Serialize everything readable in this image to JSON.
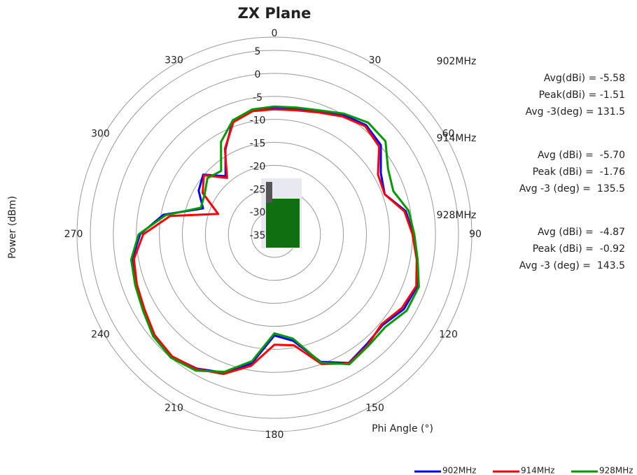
{
  "chart_data": {
    "type": "radar",
    "title": "ZX Plane",
    "y_label": "Power (dBm)",
    "x_label": "Phi Angle (°)",
    "categories": [
      "0",
      null,
      null,
      "30",
      null,
      null,
      "60",
      null,
      null,
      "90",
      null,
      null,
      "120",
      null,
      null,
      "150",
      null,
      null,
      "180",
      null,
      null,
      "210",
      null,
      null,
      "240",
      null,
      null,
      "270",
      null,
      null,
      "300",
      null,
      null,
      "330",
      null,
      null
    ],
    "ylim": [
      -35,
      5
    ],
    "yticks": [
      -35,
      -30,
      -25,
      -20,
      -15,
      -10,
      -5,
      0,
      5
    ],
    "grid": true,
    "legend": "bottom-right",
    "series": [
      {
        "name": "902MHz",
        "color": "#0000ff",
        "values": [
          -7.6,
          -7.4,
          -6.6,
          -5.0,
          -4.0,
          -4.8,
          -8.3,
          -9.5,
          -6.0,
          -4.9,
          -3.5,
          -2.0,
          -2.5,
          -4.3,
          -3.8,
          -2.7,
          -5.5,
          -11.5,
          -13.0,
          -6.5,
          -3.0,
          -1.3,
          -0.3,
          -0.9,
          -2.3,
          -3.0,
          -3.6,
          -5.8,
          -10.5,
          -18.5,
          -16.0,
          -14.8,
          -18.5,
          -13.7,
          -8.6,
          -7.6
        ]
      },
      {
        "name": "914MHz",
        "color": "#ff0000",
        "values": [
          -7.8,
          -7.6,
          -6.8,
          -5.4,
          -4.3,
          -5.3,
          -9.0,
          -9.5,
          -6.3,
          -5.0,
          -3.6,
          -2.2,
          -3.0,
          -4.6,
          -3.5,
          -2.6,
          -5.0,
          -10.5,
          -11.0,
          -6.0,
          -2.7,
          -1.2,
          -0.4,
          -1.0,
          -2.4,
          -3.2,
          -4.0,
          -6.5,
          -12.0,
          -22.0,
          -17.0,
          -15.0,
          -19.0,
          -13.5,
          -9.0,
          -7.8
        ]
      },
      {
        "name": "928MHz",
        "color": "#009a00",
        "values": [
          -7.2,
          -7.0,
          -6.3,
          -4.7,
          -3.3,
          -3.5,
          -6.5,
          -7.5,
          -5.4,
          -4.6,
          -3.4,
          -1.6,
          -1.8,
          -3.6,
          -3.3,
          -2.4,
          -5.3,
          -12.0,
          -13.5,
          -7.0,
          -3.2,
          -0.8,
          0,
          -0.6,
          -2.0,
          -2.8,
          -3.4,
          -5.5,
          -11.0,
          -18.0,
          -17.5,
          -16.0,
          -17.0,
          -11.8,
          -8.6,
          -7.4
        ]
      }
    ],
    "annotations": [
      [
        "902MHz",
        "Avg(dBi) = -5.58",
        "Peak(dBi) = -1.51",
        "Avg -3(deg) = 131.5"
      ],
      [
        "914MHz",
        "Avg (dBi) =  -5.70",
        "Peak (dBi) =  -1.76",
        "Avg -3 (deg) =  135.5"
      ],
      [
        "928MHz",
        "Avg (dBi) =  -4.87",
        "Peak (dBi) =  -0.92",
        "Avg -3 (deg) =  143.5"
      ]
    ]
  }
}
